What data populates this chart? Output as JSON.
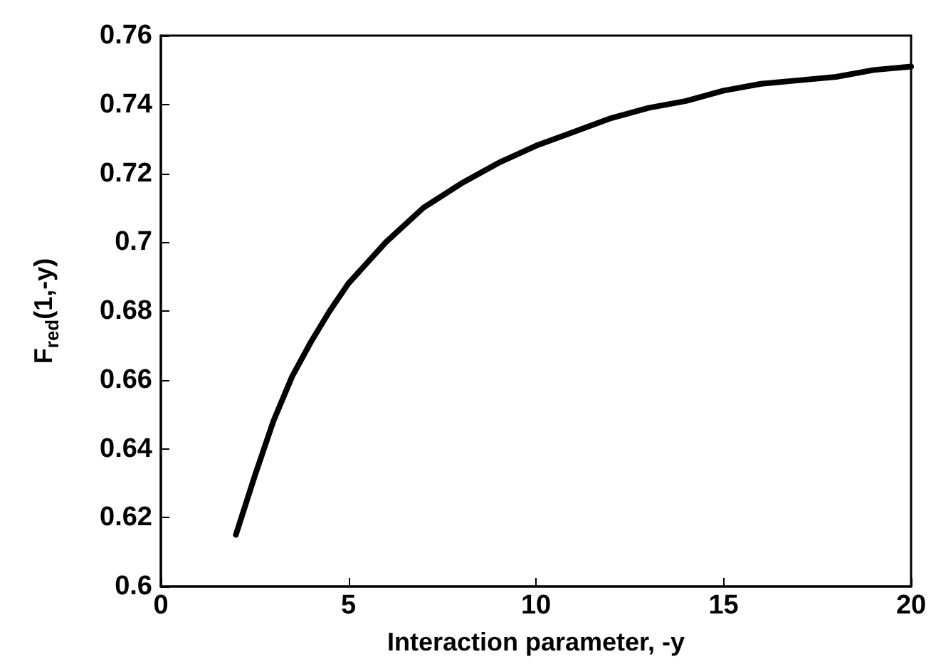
{
  "chart_data": {
    "type": "line",
    "xlabel": "Interaction parameter, -y",
    "ylabel": "F$_{red}$(1,-y)",
    "x": [
      2,
      2.5,
      3,
      3.5,
      4,
      4.5,
      5,
      6,
      7,
      8,
      9,
      10,
      11,
      12,
      13,
      14,
      15,
      16,
      17,
      18,
      19,
      20
    ],
    "series": [
      {
        "color": "#000000",
        "values": [
          0.615,
          0.632,
          0.648,
          0.661,
          0.671,
          0.68,
          0.688,
          0.7,
          0.71,
          0.717,
          0.723,
          0.728,
          0.732,
          0.736,
          0.739,
          0.741,
          0.744,
          0.746,
          0.747,
          0.748,
          0.75,
          0.751
        ]
      }
    ],
    "xlim": [
      0,
      20
    ],
    "xticks": [
      0,
      5,
      10,
      15,
      20
    ],
    "ylim": [
      0.6,
      0.76
    ],
    "yticks": [
      0.6,
      0.62,
      0.64,
      0.66,
      0.68,
      0.7,
      0.72,
      0.74,
      0.76
    ],
    "grid": false,
    "marker": "none",
    "line_style": "solid"
  }
}
